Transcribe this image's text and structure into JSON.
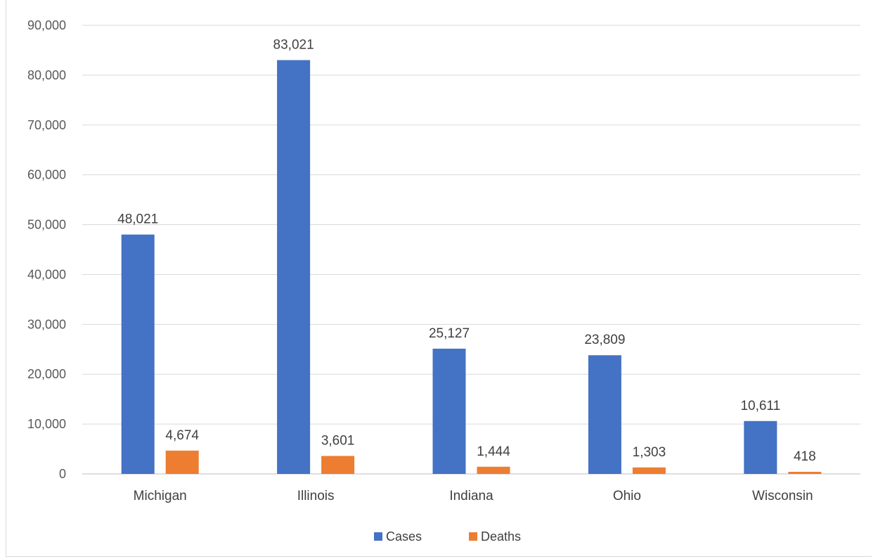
{
  "chart_data": {
    "type": "bar",
    "title": "",
    "xlabel": "",
    "ylabel": "",
    "categories": [
      "Michigan",
      "Illinois",
      "Indiana",
      "Ohio",
      "Wisconsin"
    ],
    "series": [
      {
        "name": "Cases",
        "color": "#4472c4",
        "values": [
          48021,
          83021,
          25127,
          23809,
          10611
        ],
        "labels": [
          "48,021",
          "83,021",
          "25,127",
          "23,809",
          "10,611"
        ]
      },
      {
        "name": "Deaths",
        "color": "#ed7d31",
        "values": [
          4674,
          3601,
          1444,
          1303,
          418
        ],
        "labels": [
          "4,674",
          "3,601",
          "1,444",
          "1,303",
          "418"
        ]
      }
    ],
    "ylim": [
      0,
      90000
    ],
    "yticks": [
      0,
      10000,
      20000,
      30000,
      40000,
      50000,
      60000,
      70000,
      80000,
      90000
    ],
    "ytick_labels": [
      "0",
      "10,000",
      "20,000",
      "30,000",
      "40,000",
      "50,000",
      "60,000",
      "70,000",
      "80,000",
      "90,000"
    ],
    "grid": true,
    "legend": "bottom-center"
  }
}
